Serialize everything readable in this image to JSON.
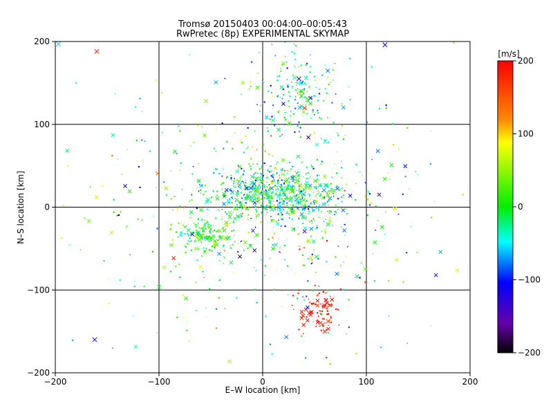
{
  "chart_data": [
    {
      "type": "scatter",
      "title": "Tromsø 20150403 00:04:00–00:05:43",
      "subtitle": "RwPretec (8p) EXPERIMENTAL SKYMAP",
      "xlabel": "E–W location [km]",
      "ylabel": "N–S location [km]",
      "xlim": [
        -200,
        200
      ],
      "ylim": [
        -200,
        200
      ],
      "xticks": [
        "−200",
        "−100",
        "0",
        "100",
        "200"
      ],
      "yticks": [
        "−200",
        "−100",
        "0",
        "100",
        "200"
      ],
      "grid": true,
      "colorbar": {
        "label": "[m/s]",
        "range": [
          -200,
          200
        ],
        "ticks": [
          "200",
          "100",
          "0",
          "−100",
          "−200"
        ]
      },
      "clusters": [
        {
          "x": 15,
          "y": 15,
          "sx": 45,
          "sy": 25,
          "n": 700,
          "vmean": -20,
          "vspread": 70
        },
        {
          "x": -55,
          "y": -35,
          "sx": 20,
          "sy": 15,
          "n": 160,
          "vmean": 10,
          "vspread": 50
        },
        {
          "x": 35,
          "y": 140,
          "sx": 30,
          "sy": 40,
          "n": 170,
          "vmean": -25,
          "vspread": 70
        },
        {
          "x": 55,
          "y": -125,
          "sx": 15,
          "sy": 20,
          "n": 90,
          "vmean": 185,
          "vspread": 20
        },
        {
          "x": 0,
          "y": 0,
          "sx": 120,
          "sy": 110,
          "n": 500,
          "vmean": 0,
          "vspread": 110
        }
      ],
      "highlighted_crosses": [
        {
          "x": -197,
          "y": 197,
          "v": -60
        },
        {
          "x": -160,
          "y": 188,
          "v": 190
        },
        {
          "x": -162,
          "y": -160,
          "v": -130
        },
        {
          "x": 118,
          "y": 196,
          "v": -110
        },
        {
          "x": 60,
          "y": -150,
          "v": 190
        },
        {
          "x": 35,
          "y": 155,
          "v": -130
        }
      ]
    }
  ]
}
